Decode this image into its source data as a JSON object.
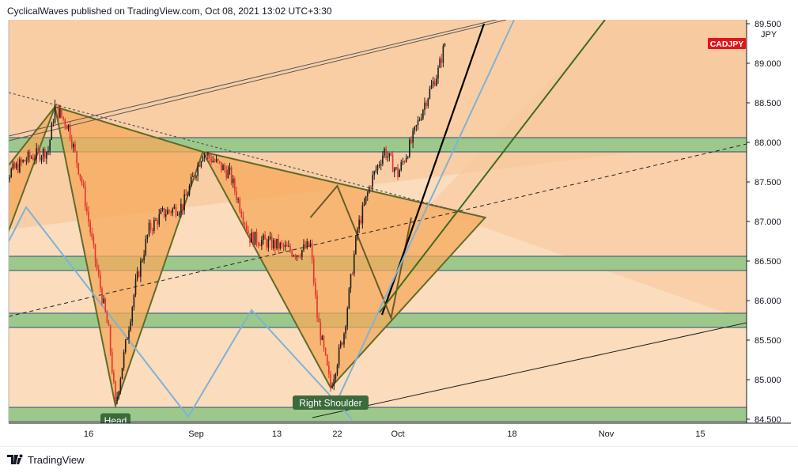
{
  "header": {
    "publish_line": "CyclicalWaves published on TradingView.com, Oct 08, 2021 13:02 UTC+3:30"
  },
  "footer": {
    "brand": "TradingView"
  },
  "chart_data": {
    "type": "candlestick",
    "symbol": "CADJPY",
    "currency": "JPY",
    "last_price": 89.25,
    "ylim": [
      84.45,
      89.55
    ],
    "y_ticks": [
      "89.500",
      "89.000",
      "88.500",
      "88.000",
      "87.500",
      "87.000",
      "86.500",
      "86.000",
      "85.500",
      "85.000",
      "84.500"
    ],
    "x_ticks": [
      "16",
      "Sep",
      "13",
      "22",
      "Oct",
      "18",
      "Nov",
      "15"
    ],
    "x_tick_dates": [
      "2021-08-16",
      "2021-09-01",
      "2021-09-13",
      "2021-09-22",
      "2021-10-01",
      "2021-10-18",
      "2021-11-01",
      "2021-11-15"
    ],
    "annotations": [
      "Head",
      "Right Shoulder"
    ],
    "zones": [
      {
        "low": 87.88,
        "high": 88.06
      },
      {
        "low": 86.38,
        "high": 86.56
      },
      {
        "low": 85.66,
        "high": 85.84
      },
      {
        "low": 84.47,
        "high": 84.65
      }
    ],
    "swing_points": [
      {
        "date": "2021-08-11",
        "price": 88.45
      },
      {
        "date": "2021-08-20",
        "price": 84.67
      },
      {
        "date": "2021-09-02",
        "price": 87.88
      },
      {
        "date": "2021-09-21",
        "price": 84.9
      },
      {
        "date": "2021-09-28",
        "price": 85.78
      },
      {
        "date": "2021-10-08",
        "price": 89.25
      }
    ],
    "price_path": [
      {
        "date": "2021-08-02",
        "price": 86.8
      },
      {
        "date": "2021-08-04",
        "price": 87.6
      },
      {
        "date": "2021-08-07",
        "price": 87.8
      },
      {
        "date": "2021-08-10",
        "price": 87.9
      },
      {
        "date": "2021-08-11",
        "price": 88.45
      },
      {
        "date": "2021-08-13",
        "price": 88.2
      },
      {
        "date": "2021-08-15",
        "price": 87.5
      },
      {
        "date": "2021-08-17",
        "price": 86.5
      },
      {
        "date": "2021-08-19",
        "price": 85.6
      },
      {
        "date": "2021-08-20",
        "price": 84.67
      },
      {
        "date": "2021-08-23",
        "price": 86.2
      },
      {
        "date": "2021-08-25",
        "price": 86.9
      },
      {
        "date": "2021-08-27",
        "price": 87.1
      },
      {
        "date": "2021-08-30",
        "price": 87.2
      },
      {
        "date": "2021-09-02",
        "price": 87.88
      },
      {
        "date": "2021-09-06",
        "price": 87.6
      },
      {
        "date": "2021-09-09",
        "price": 86.8
      },
      {
        "date": "2021-09-13",
        "price": 86.7
      },
      {
        "date": "2021-09-16",
        "price": 86.6
      },
      {
        "date": "2021-09-18",
        "price": 86.7
      },
      {
        "date": "2021-09-19",
        "price": 85.8
      },
      {
        "date": "2021-09-21",
        "price": 84.9
      },
      {
        "date": "2021-09-23",
        "price": 85.6
      },
      {
        "date": "2021-09-25",
        "price": 86.9
      },
      {
        "date": "2021-09-27",
        "price": 87.5
      },
      {
        "date": "2021-09-29",
        "price": 87.9
      },
      {
        "date": "2021-10-01",
        "price": 87.6
      },
      {
        "date": "2021-10-03",
        "price": 88.0
      },
      {
        "date": "2021-10-05",
        "price": 88.5
      },
      {
        "date": "2021-10-07",
        "price": 88.9
      },
      {
        "date": "2021-10-08",
        "price": 89.25
      }
    ]
  }
}
